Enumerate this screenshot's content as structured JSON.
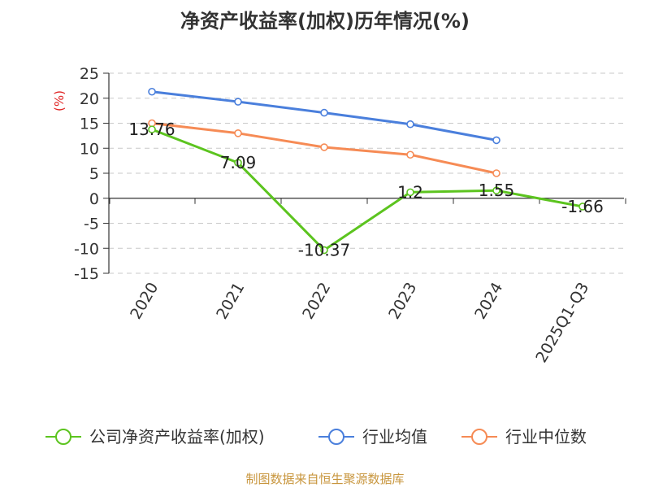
{
  "chart_data": {
    "type": "line",
    "title": "净资产收益率(加权)历年情况(%)",
    "ylabel": "(%)",
    "categories": [
      "2020",
      "2021",
      "2022",
      "2023",
      "2024",
      "2025Q1-Q3"
    ],
    "ylim": [
      -15,
      25
    ],
    "yticks": [
      25,
      20,
      15,
      10,
      5,
      0,
      -5,
      -10,
      -15
    ],
    "grid": true,
    "legend_position": "bottom",
    "series": [
      {
        "name": "公司净资产收益率(加权)",
        "color": "#5cc41f",
        "values": [
          13.76,
          7.09,
          -10.37,
          1.2,
          1.55,
          -1.66
        ],
        "labels": [
          "13.76",
          "7.09",
          "-10.37",
          "1.2",
          "1.55",
          "-1.66"
        ]
      },
      {
        "name": "行业均值",
        "color": "#4a7fdc",
        "values": [
          21.3,
          19.3,
          17.1,
          14.8,
          11.6,
          null
        ]
      },
      {
        "name": "行业中位数",
        "color": "#f68b55",
        "values": [
          15.0,
          13.0,
          10.2,
          8.7,
          5.0,
          null
        ]
      }
    ]
  },
  "footer": {
    "source": "制图数据来自恒生聚源数据库"
  }
}
